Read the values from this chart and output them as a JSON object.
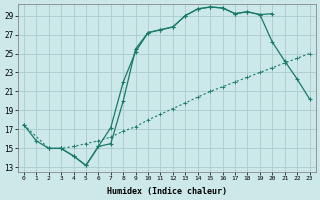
{
  "xlabel": "Humidex (Indice chaleur)",
  "bg_color": "#cce8e8",
  "line_color": "#1a7a6a",
  "grid_color": "#aacccc",
  "xlim": [
    -0.5,
    23.5
  ],
  "ylim": [
    12.5,
    30.2
  ],
  "xticks": [
    0,
    1,
    2,
    3,
    4,
    5,
    6,
    7,
    8,
    9,
    10,
    11,
    12,
    13,
    14,
    15,
    16,
    17,
    18,
    19,
    20,
    21,
    22,
    23
  ],
  "yticks": [
    13,
    15,
    17,
    19,
    21,
    23,
    25,
    27,
    29
  ],
  "line1_x": [
    0,
    1,
    2,
    3,
    4,
    5,
    6,
    7,
    8,
    9,
    10,
    11,
    12,
    13,
    14,
    15,
    16,
    17,
    18,
    19,
    20
  ],
  "line1_y": [
    17.5,
    15.8,
    15.0,
    15.0,
    14.2,
    13.2,
    15.2,
    17.2,
    22.0,
    25.2,
    27.2,
    27.5,
    27.8,
    29.0,
    29.7,
    29.9,
    29.8,
    29.2,
    29.4,
    29.1,
    29.2
  ],
  "line2_x": [
    2,
    3,
    4,
    5,
    6,
    7,
    8,
    9,
    10,
    11,
    12,
    13,
    14,
    15,
    16,
    17,
    18,
    19,
    20,
    21,
    22,
    23
  ],
  "line2_y": [
    15.0,
    15.0,
    14.2,
    13.2,
    15.2,
    15.5,
    20.0,
    25.5,
    27.2,
    27.5,
    27.8,
    29.0,
    29.7,
    29.9,
    29.8,
    29.2,
    29.4,
    29.1,
    26.2,
    24.2,
    22.3,
    20.2
  ],
  "line3_x": [
    0,
    2,
    3,
    4,
    5,
    6,
    7,
    8,
    9,
    10,
    11,
    12,
    13,
    14,
    15,
    16,
    17,
    18,
    19,
    20,
    21,
    22,
    23
  ],
  "line3_y": [
    17.5,
    15.0,
    15.0,
    15.2,
    15.5,
    15.8,
    16.2,
    16.8,
    17.3,
    18.0,
    18.6,
    19.2,
    19.8,
    20.4,
    21.0,
    21.5,
    22.0,
    22.5,
    23.0,
    23.5,
    24.0,
    24.5,
    25.0
  ]
}
